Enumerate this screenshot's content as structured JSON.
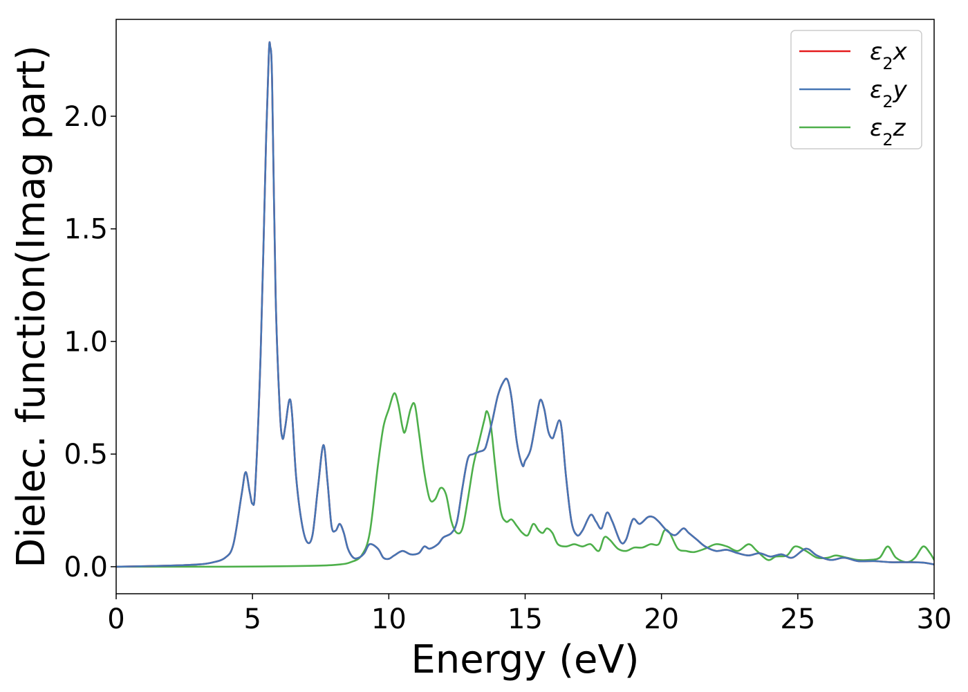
{
  "chart_data": {
    "type": "line",
    "xlabel": "Energy (eV)",
    "ylabel": "Dielec. function(Imag part)",
    "xlim": [
      0,
      30
    ],
    "ylim": [
      -0.12,
      2.43
    ],
    "xticks": [
      0,
      5,
      10,
      15,
      20,
      25,
      30
    ],
    "xtick_labels": [
      "0",
      "5",
      "10",
      "15",
      "20",
      "25",
      "30"
    ],
    "yticks": [
      0.0,
      0.5,
      1.0,
      1.5,
      2.0
    ],
    "ytick_labels": [
      "0.0",
      "0.5",
      "1.0",
      "1.5",
      "2.0"
    ],
    "grid": false,
    "legend_position": "top-right",
    "series": [
      {
        "name": "ε2x",
        "legend_base": "ε",
        "legend_sub": "2",
        "legend_suffix": "x",
        "color": "#e41a1c",
        "x": [
          0,
          2,
          3,
          3.5,
          4,
          4.3,
          4.6,
          4.75,
          4.9,
          5.0,
          5.1,
          5.3,
          5.5,
          5.6,
          5.65,
          5.72,
          5.85,
          6.0,
          6.1,
          6.2,
          6.35,
          6.45,
          6.6,
          6.8,
          7.0,
          7.2,
          7.4,
          7.6,
          7.75,
          7.9,
          8.05,
          8.2,
          8.35,
          8.5,
          8.7,
          8.9,
          9.1,
          9.3,
          9.6,
          9.8,
          10.0,
          10.2,
          10.5,
          10.8,
          11.1,
          11.3,
          11.5,
          11.8,
          12.0,
          12.3,
          12.5,
          12.7,
          12.9,
          13.1,
          13.3,
          13.5,
          13.6,
          13.8,
          14.0,
          14.2,
          14.35,
          14.5,
          14.7,
          14.9,
          15.0,
          15.2,
          15.4,
          15.55,
          15.7,
          15.85,
          16.0,
          16.1,
          16.25,
          16.35,
          16.5,
          16.7,
          16.9,
          17.1,
          17.4,
          17.6,
          17.8,
          18.0,
          18.2,
          18.5,
          18.7,
          18.95,
          19.2,
          19.5,
          19.7,
          19.9,
          20.2,
          20.5,
          20.8,
          21.0,
          21.3,
          21.6,
          22.0,
          22.4,
          22.8,
          23.2,
          23.6,
          24.0,
          24.4,
          24.8,
          25.3,
          25.7,
          26.2,
          26.7,
          27.2,
          27.8,
          28.4,
          29.0,
          29.6,
          30.0
        ],
        "y": [
          0.0,
          0.005,
          0.01,
          0.018,
          0.04,
          0.1,
          0.32,
          0.42,
          0.33,
          0.28,
          0.35,
          0.95,
          1.9,
          2.28,
          2.31,
          2.15,
          1.2,
          0.7,
          0.57,
          0.62,
          0.74,
          0.68,
          0.4,
          0.2,
          0.11,
          0.14,
          0.35,
          0.54,
          0.38,
          0.18,
          0.16,
          0.19,
          0.15,
          0.08,
          0.04,
          0.04,
          0.06,
          0.1,
          0.08,
          0.04,
          0.035,
          0.05,
          0.07,
          0.055,
          0.06,
          0.09,
          0.08,
          0.1,
          0.13,
          0.15,
          0.2,
          0.35,
          0.48,
          0.5,
          0.51,
          0.52,
          0.55,
          0.65,
          0.76,
          0.82,
          0.83,
          0.75,
          0.55,
          0.45,
          0.47,
          0.52,
          0.65,
          0.74,
          0.7,
          0.6,
          0.57,
          0.6,
          0.65,
          0.6,
          0.4,
          0.2,
          0.14,
          0.16,
          0.23,
          0.2,
          0.17,
          0.24,
          0.2,
          0.11,
          0.12,
          0.21,
          0.19,
          0.22,
          0.22,
          0.2,
          0.16,
          0.14,
          0.17,
          0.15,
          0.12,
          0.09,
          0.07,
          0.075,
          0.06,
          0.05,
          0.06,
          0.045,
          0.055,
          0.04,
          0.08,
          0.05,
          0.03,
          0.04,
          0.025,
          0.025,
          0.02,
          0.02,
          0.018,
          0.01
        ]
      },
      {
        "name": "ε2y",
        "legend_base": "ε",
        "legend_sub": "2",
        "legend_suffix": "y",
        "color": "#4575b4",
        "x": [
          0,
          2,
          3,
          3.5,
          4,
          4.3,
          4.6,
          4.75,
          4.9,
          5.0,
          5.1,
          5.3,
          5.5,
          5.6,
          5.65,
          5.72,
          5.85,
          6.0,
          6.1,
          6.2,
          6.35,
          6.45,
          6.6,
          6.8,
          7.0,
          7.2,
          7.4,
          7.6,
          7.75,
          7.9,
          8.05,
          8.2,
          8.35,
          8.5,
          8.7,
          8.9,
          9.1,
          9.3,
          9.6,
          9.8,
          10.0,
          10.2,
          10.5,
          10.8,
          11.1,
          11.3,
          11.5,
          11.8,
          12.0,
          12.3,
          12.5,
          12.7,
          12.9,
          13.1,
          13.3,
          13.5,
          13.6,
          13.8,
          14.0,
          14.2,
          14.35,
          14.5,
          14.7,
          14.9,
          15.0,
          15.2,
          15.4,
          15.55,
          15.7,
          15.85,
          16.0,
          16.1,
          16.25,
          16.35,
          16.5,
          16.7,
          16.9,
          17.1,
          17.4,
          17.6,
          17.8,
          18.0,
          18.2,
          18.5,
          18.7,
          18.95,
          19.2,
          19.5,
          19.7,
          19.9,
          20.2,
          20.5,
          20.8,
          21.0,
          21.3,
          21.6,
          22.0,
          22.4,
          22.8,
          23.2,
          23.6,
          24.0,
          24.4,
          24.8,
          25.3,
          25.7,
          26.2,
          26.7,
          27.2,
          27.8,
          28.4,
          29.0,
          29.6,
          30.0
        ],
        "y": [
          0.0,
          0.005,
          0.01,
          0.018,
          0.04,
          0.1,
          0.32,
          0.42,
          0.33,
          0.28,
          0.35,
          0.95,
          1.9,
          2.28,
          2.31,
          2.15,
          1.2,
          0.7,
          0.57,
          0.62,
          0.74,
          0.68,
          0.4,
          0.2,
          0.11,
          0.14,
          0.35,
          0.54,
          0.38,
          0.18,
          0.16,
          0.19,
          0.15,
          0.08,
          0.04,
          0.04,
          0.06,
          0.1,
          0.08,
          0.04,
          0.035,
          0.05,
          0.07,
          0.055,
          0.06,
          0.09,
          0.08,
          0.1,
          0.13,
          0.15,
          0.2,
          0.35,
          0.48,
          0.5,
          0.51,
          0.52,
          0.55,
          0.65,
          0.76,
          0.82,
          0.83,
          0.75,
          0.55,
          0.45,
          0.47,
          0.52,
          0.65,
          0.74,
          0.7,
          0.6,
          0.57,
          0.6,
          0.65,
          0.6,
          0.4,
          0.2,
          0.14,
          0.16,
          0.23,
          0.2,
          0.17,
          0.24,
          0.2,
          0.11,
          0.12,
          0.21,
          0.19,
          0.22,
          0.22,
          0.2,
          0.16,
          0.14,
          0.17,
          0.15,
          0.12,
          0.09,
          0.07,
          0.075,
          0.06,
          0.05,
          0.06,
          0.045,
          0.055,
          0.04,
          0.08,
          0.05,
          0.03,
          0.04,
          0.025,
          0.025,
          0.02,
          0.02,
          0.018,
          0.01
        ]
      },
      {
        "name": "ε2z",
        "legend_base": "ε",
        "legend_sub": "2",
        "legend_suffix": "z",
        "color": "#4daf4a",
        "x": [
          0,
          4,
          6,
          7.5,
          8.2,
          8.6,
          9.0,
          9.3,
          9.6,
          9.8,
          10.0,
          10.2,
          10.35,
          10.5,
          10.6,
          10.8,
          10.95,
          11.1,
          11.3,
          11.5,
          11.7,
          11.9,
          12.1,
          12.3,
          12.5,
          12.7,
          12.9,
          13.1,
          13.3,
          13.5,
          13.6,
          13.75,
          13.9,
          14.1,
          14.3,
          14.5,
          14.7,
          14.9,
          15.1,
          15.3,
          15.5,
          15.65,
          15.8,
          16.0,
          16.2,
          16.5,
          16.8,
          17.1,
          17.4,
          17.7,
          17.9,
          18.1,
          18.4,
          18.7,
          19.0,
          19.3,
          19.6,
          19.9,
          20.1,
          20.3,
          20.6,
          20.9,
          21.2,
          21.6,
          22.0,
          22.4,
          22.8,
          23.2,
          23.5,
          23.9,
          24.2,
          24.6,
          24.9,
          25.3,
          25.7,
          26.1,
          26.4,
          26.8,
          27.2,
          27.6,
          28.0,
          28.3,
          28.6,
          29.0,
          29.3,
          29.6,
          29.85,
          30.0
        ],
        "y": [
          0.0,
          0.0,
          0.002,
          0.005,
          0.01,
          0.02,
          0.05,
          0.15,
          0.45,
          0.62,
          0.7,
          0.77,
          0.72,
          0.62,
          0.6,
          0.7,
          0.72,
          0.6,
          0.42,
          0.3,
          0.3,
          0.35,
          0.32,
          0.2,
          0.15,
          0.17,
          0.3,
          0.45,
          0.55,
          0.65,
          0.69,
          0.62,
          0.45,
          0.25,
          0.2,
          0.21,
          0.18,
          0.15,
          0.14,
          0.19,
          0.16,
          0.15,
          0.17,
          0.15,
          0.1,
          0.09,
          0.1,
          0.09,
          0.1,
          0.07,
          0.13,
          0.12,
          0.08,
          0.07,
          0.085,
          0.085,
          0.1,
          0.1,
          0.16,
          0.15,
          0.08,
          0.07,
          0.065,
          0.08,
          0.1,
          0.09,
          0.07,
          0.1,
          0.07,
          0.03,
          0.045,
          0.05,
          0.09,
          0.07,
          0.04,
          0.04,
          0.05,
          0.04,
          0.03,
          0.03,
          0.04,
          0.09,
          0.04,
          0.02,
          0.04,
          0.09,
          0.06,
          0.03
        ]
      }
    ]
  }
}
